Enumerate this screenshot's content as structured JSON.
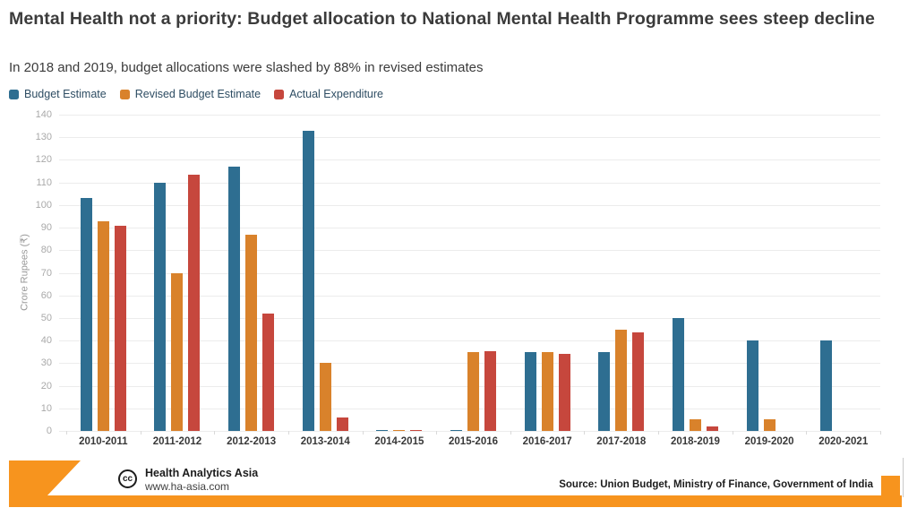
{
  "header": {
    "title": "Mental Health not a priority: Budget allocation to National Mental Health Programme sees steep decline",
    "subtitle": "In 2018 and 2019, budget allocations were slashed by 88% in revised estimates"
  },
  "chart_data": {
    "type": "bar",
    "title": "Mental Health not a priority: Budget allocation to National Mental Health Programme sees steep decline",
    "subtitle": "In 2018 and 2019, budget allocations were slashed by 88% in revised estimates",
    "categories": [
      "2010-2011",
      "2011-2012",
      "2012-2013",
      "2013-2014",
      "2014-2015",
      "2015-2016",
      "2016-2017",
      "2017-2018",
      "2018-2019",
      "2019-2020",
      "2020-2021"
    ],
    "series": [
      {
        "name": "Budget Estimate",
        "color": "#2e6e91",
        "values": [
          103,
          110,
          117,
          133,
          0.5,
          0.5,
          35,
          35,
          50,
          40,
          40
        ]
      },
      {
        "name": "Revised Budget Estimate",
        "color": "#d9822b",
        "values": [
          93,
          70,
          87,
          30,
          0.5,
          35,
          35,
          45,
          5,
          5,
          0
        ]
      },
      {
        "name": "Actual Expenditure",
        "color": "#c6473d",
        "values": [
          91,
          113.5,
          52,
          6,
          0.5,
          35.5,
          34,
          43.5,
          2,
          0,
          0
        ]
      }
    ],
    "xlabel": "",
    "ylabel": "Crore Rupees (₹)",
    "ylim": [
      0,
      140
    ],
    "ytick_step": 10,
    "grid": true,
    "legend_position": "top"
  },
  "footer": {
    "cc_label": "cc",
    "brand_name": "Health Analytics Asia",
    "brand_url": "www.ha-asia.com",
    "source": "Source: Union Budget, Ministry of Finance, Government of India",
    "accent_color": "#f7941e",
    "text_color": "#1c1c1c"
  }
}
